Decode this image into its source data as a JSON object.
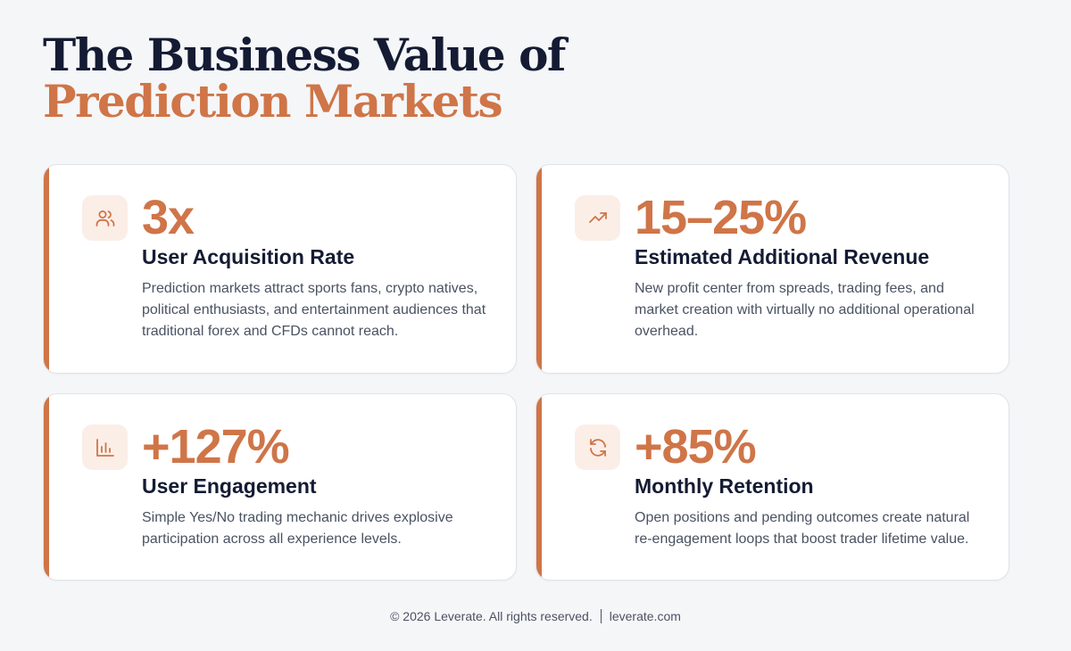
{
  "header": {
    "title_line1": "The Business Value of",
    "title_line2": "Prediction Markets"
  },
  "colors": {
    "accent": "#cf7548",
    "title": "#141b33",
    "icon_bg": "#fbeee7",
    "background": "#f5f6f8"
  },
  "cards": [
    {
      "icon": "users-icon",
      "stat": "3x",
      "label": "User Acquisition Rate",
      "description": "Prediction markets attract sports fans, crypto natives, political enthusiasts, and entertainment audiences that traditional forex and CFDs cannot reach."
    },
    {
      "icon": "trending-up-icon",
      "stat": "15–25%",
      "label": "Estimated Additional Revenue",
      "description": "New profit center from spreads, trading fees, and market creation with virtually no additional operational overhead."
    },
    {
      "icon": "bar-chart-icon",
      "stat": "+127%",
      "label": "User Engagement",
      "description": "Simple Yes/No trading mechanic drives explosive participation across all experience levels."
    },
    {
      "icon": "refresh-icon",
      "stat": "+85%",
      "label": "Monthly Retention",
      "description": "Open positions and pending outcomes create natural re-engagement loops that boost trader lifetime value."
    }
  ],
  "footer": {
    "copyright": "© 2026 Leverate. All rights reserved.",
    "website": "leverate.com"
  }
}
